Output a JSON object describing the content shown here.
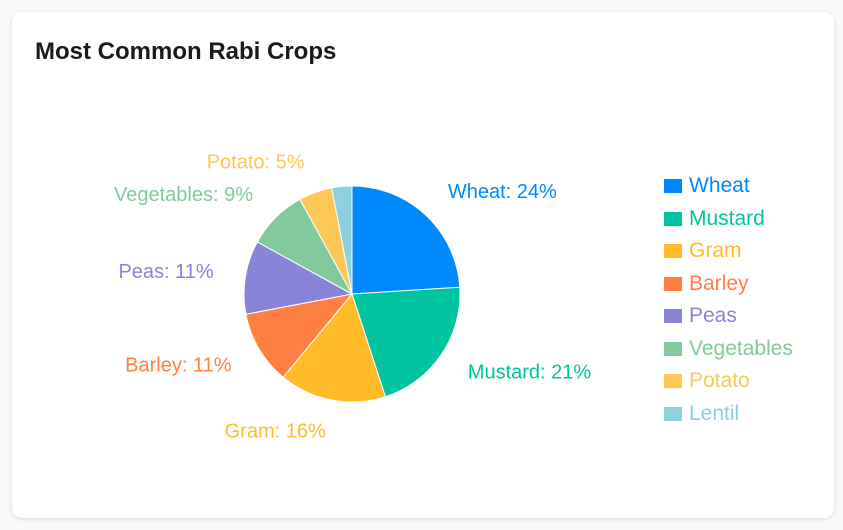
{
  "title": "Most Common Rabi Crops",
  "chart_data": {
    "type": "pie",
    "title": "Most Common Rabi Crops",
    "legend_position": "right",
    "slices": [
      {
        "label": "Wheat",
        "value": 24,
        "color": "#0088FE"
      },
      {
        "label": "Mustard",
        "value": 21,
        "color": "#00C49F"
      },
      {
        "label": "Gram",
        "value": 16,
        "color": "#FFBB28"
      },
      {
        "label": "Barley",
        "value": 11,
        "color": "#FF8042"
      },
      {
        "label": "Peas",
        "value": 11,
        "color": "#8884D8"
      },
      {
        "label": "Vegetables",
        "value": 9,
        "color": "#82CA9D"
      },
      {
        "label": "Potato",
        "value": 5,
        "color": "#FFC658"
      },
      {
        "label": "Lentil",
        "value": 3,
        "color": "#8DD1E1"
      }
    ]
  }
}
